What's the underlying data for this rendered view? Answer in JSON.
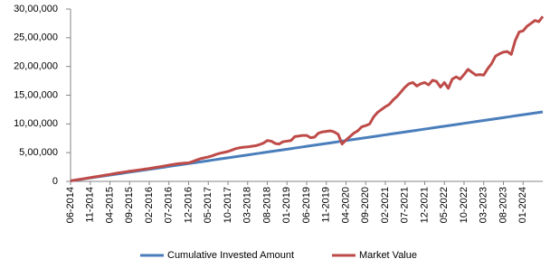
{
  "chart_data": {
    "type": "line",
    "categories": [
      "06-2014",
      null,
      null,
      null,
      null,
      "11-2014",
      null,
      null,
      null,
      null,
      "04-2015",
      null,
      null,
      null,
      null,
      "09-2015",
      null,
      null,
      null,
      null,
      "02-2016",
      null,
      null,
      null,
      null,
      "07-2016",
      null,
      null,
      null,
      null,
      "12-2016",
      null,
      null,
      null,
      null,
      "05-2017",
      null,
      null,
      null,
      null,
      "10-2017",
      null,
      null,
      null,
      null,
      "03-2018",
      null,
      null,
      null,
      null,
      "08-2018",
      null,
      null,
      null,
      null,
      "01-2019",
      null,
      null,
      null,
      null,
      "06-2019",
      null,
      null,
      null,
      null,
      "11-2019",
      null,
      null,
      null,
      null,
      "04-2020",
      null,
      null,
      null,
      null,
      "09-2020",
      null,
      null,
      null,
      null,
      "02-2021",
      null,
      null,
      null,
      null,
      "07-2021",
      null,
      null,
      null,
      null,
      "12-2021",
      null,
      null,
      null,
      null,
      "05-2022",
      null,
      null,
      null,
      null,
      "10-2022",
      null,
      null,
      null,
      null,
      "03-2023",
      null,
      null,
      null,
      null,
      "08-2023",
      null,
      null,
      null,
      null,
      "01-2024",
      null,
      null,
      null,
      null,
      null
    ],
    "series": [
      {
        "name": "Cumulative Invested Amount",
        "color": "#4a7ebb",
        "values": [
          10000,
          20000,
          30000,
          40000,
          50000,
          60000,
          70000,
          80000,
          90000,
          100000,
          110000,
          120000,
          130000,
          140000,
          150000,
          160000,
          170000,
          180000,
          190000,
          200000,
          210000,
          220000,
          230000,
          240000,
          250000,
          260000,
          270000,
          280000,
          290000,
          300000,
          310000,
          320000,
          330000,
          340000,
          350000,
          360000,
          370000,
          380000,
          390000,
          400000,
          410000,
          420000,
          430000,
          440000,
          450000,
          460000,
          470000,
          480000,
          490000,
          500000,
          510000,
          520000,
          530000,
          540000,
          550000,
          560000,
          570000,
          580000,
          590000,
          600000,
          610000,
          620000,
          630000,
          640000,
          650000,
          660000,
          670000,
          680000,
          690000,
          700000,
          710000,
          720000,
          730000,
          740000,
          750000,
          760000,
          770000,
          780000,
          790000,
          800000,
          810000,
          820000,
          830000,
          840000,
          850000,
          860000,
          870000,
          880000,
          890000,
          900000,
          910000,
          920000,
          930000,
          940000,
          950000,
          960000,
          970000,
          980000,
          990000,
          1000000,
          1010000,
          1020000,
          1030000,
          1040000,
          1050000,
          1060000,
          1070000,
          1080000,
          1090000,
          1100000,
          1110000,
          1120000,
          1130000,
          1140000,
          1150000,
          1160000,
          1170000,
          1180000,
          1190000,
          1200000,
          1210000
        ]
      },
      {
        "name": "Market Value",
        "color": "#be4b48",
        "values": [
          10000,
          20500,
          31500,
          42000,
          53500,
          65000,
          76000,
          87000,
          98000,
          110000,
          121000,
          133000,
          145000,
          155000,
          166000,
          176000,
          185000,
          195000,
          205000,
          214000,
          224000,
          236000,
          247000,
          258000,
          270000,
          282000,
          292000,
          305000,
          312000,
          318000,
          322000,
          345000,
          370000,
          395000,
          410000,
          425000,
          445000,
          470000,
          490000,
          505000,
          520000,
          545000,
          570000,
          585000,
          595000,
          600000,
          610000,
          620000,
          640000,
          665000,
          710000,
          700000,
          660000,
          650000,
          690000,
          700000,
          710000,
          780000,
          790000,
          800000,
          800000,
          760000,
          770000,
          840000,
          860000,
          870000,
          880000,
          860000,
          820000,
          650000,
          720000,
          780000,
          840000,
          880000,
          950000,
          970000,
          1000000,
          1120000,
          1200000,
          1250000,
          1300000,
          1340000,
          1420000,
          1480000,
          1560000,
          1640000,
          1700000,
          1720000,
          1660000,
          1700000,
          1720000,
          1680000,
          1760000,
          1740000,
          1640000,
          1720000,
          1620000,
          1780000,
          1820000,
          1780000,
          1860000,
          1950000,
          1900000,
          1850000,
          1860000,
          1850000,
          1960000,
          2050000,
          2180000,
          2220000,
          2250000,
          2260000,
          2210000,
          2450000,
          2600000,
          2620000,
          2700000,
          2750000,
          2800000,
          2780000,
          2870000
        ]
      }
    ],
    "ylim": [
      0,
      3000000
    ],
    "yticks": [
      0,
      {
        "value": 500000,
        "label": "5,00,000"
      },
      {
        "value": 1000000,
        "label": "10,00,000"
      },
      {
        "value": 1500000,
        "label": "15,00,000"
      },
      {
        "value": 2000000,
        "label": "20,00,000"
      },
      {
        "value": 2500000,
        "label": "25,00,000"
      },
      {
        "value": 3000000,
        "label": "30,00,000"
      }
    ],
    "grid": false
  }
}
